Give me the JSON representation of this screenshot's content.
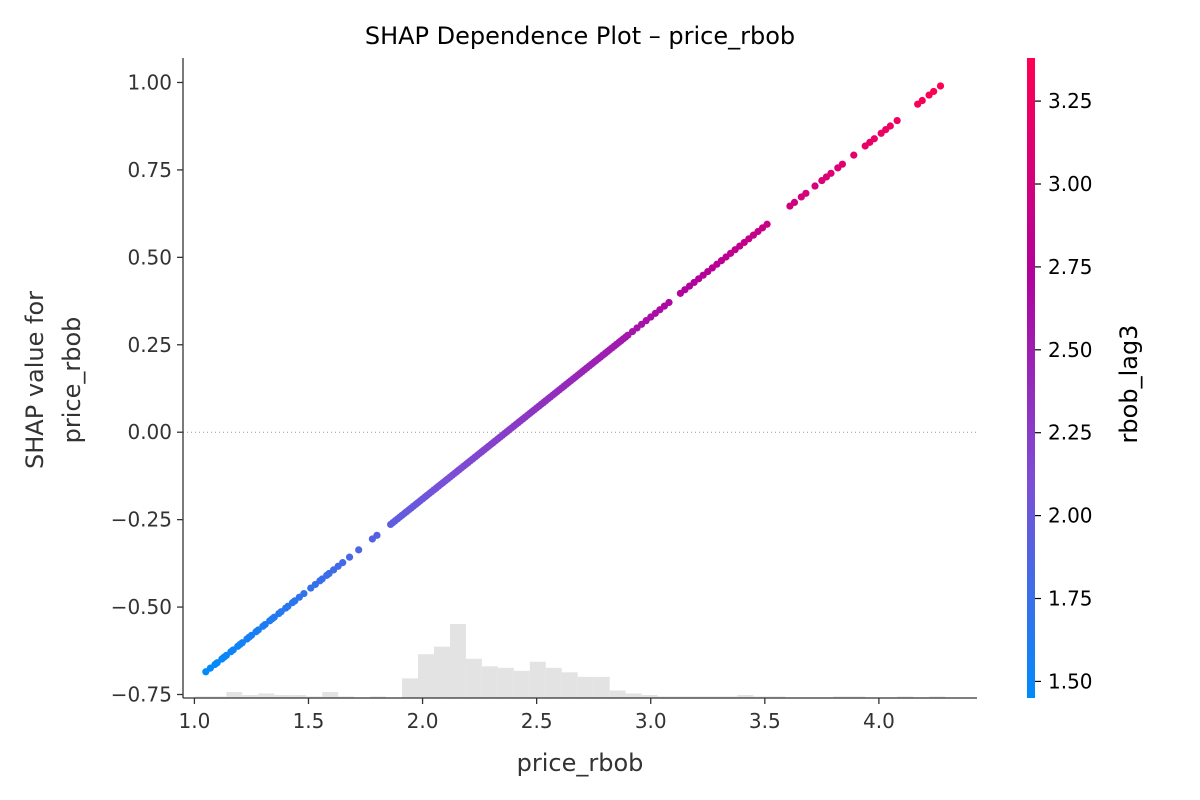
{
  "chart_data": {
    "type": "scatter",
    "title": "SHAP Dependence Plot – price_rbob",
    "xlabel": "price_rbob",
    "ylabel": [
      "SHAP value for",
      "price_rbob"
    ],
    "xlim": [
      0.95,
      4.43
    ],
    "ylim": [
      -0.76,
      1.07
    ],
    "xticks": [
      1.0,
      1.5,
      2.0,
      2.5,
      3.0,
      3.5,
      4.0
    ],
    "xtick_labels": [
      "1.0",
      "1.5",
      "2.0",
      "2.5",
      "3.0",
      "3.5",
      "4.0"
    ],
    "yticks": [
      1.0,
      0.75,
      0.5,
      0.25,
      0.0,
      -0.25,
      -0.5,
      -0.75
    ],
    "ytick_labels": [
      "1.00",
      "0.75",
      "0.50",
      "0.25",
      "0.00",
      "−0.25",
      "−0.50",
      "−0.75"
    ],
    "zero_line": true,
    "grid": false,
    "colorbar": {
      "label": "rbob_lag3",
      "range": [
        1.45,
        3.38
      ],
      "ticks": [
        3.25,
        3.0,
        2.75,
        2.5,
        2.25,
        2.0,
        1.75,
        1.5
      ],
      "tick_labels": [
        "3.25",
        "3.00",
        "2.75",
        "2.50",
        "2.25",
        "2.00",
        "1.75",
        "1.50"
      ],
      "colors": [
        "#008bfb",
        "#7b4fd6",
        "#b2019b",
        "#ff0052"
      ]
    },
    "series": [
      {
        "relation": "linear",
        "x_range": [
          1.05,
          4.27
        ],
        "shap_at_x_min": -0.685,
        "shap_at_x_max": 0.99,
        "color_min": "#008bfb",
        "color_max": "#ff0052",
        "x_points": [
          1.05,
          1.07,
          1.09,
          1.1,
          1.12,
          1.13,
          1.14,
          1.16,
          1.17,
          1.19,
          1.2,
          1.21,
          1.23,
          1.24,
          1.25,
          1.27,
          1.28,
          1.3,
          1.31,
          1.33,
          1.34,
          1.35,
          1.37,
          1.38,
          1.4,
          1.41,
          1.43,
          1.44,
          1.46,
          1.48,
          1.51,
          1.53,
          1.55,
          1.56,
          1.58,
          1.59,
          1.61,
          1.63,
          1.65,
          1.68,
          1.72,
          1.78,
          1.8,
          1.86,
          1.87,
          1.88,
          1.89,
          1.9,
          1.91,
          1.92,
          1.93,
          1.94,
          1.95,
          1.96,
          1.97,
          1.98,
          1.99,
          2.0,
          2.01,
          2.02,
          2.03,
          2.04,
          2.05,
          2.06,
          2.07,
          2.08,
          2.09,
          2.1,
          2.11,
          2.12,
          2.13,
          2.14,
          2.15,
          2.16,
          2.17,
          2.18,
          2.19,
          2.2,
          2.21,
          2.22,
          2.23,
          2.24,
          2.25,
          2.26,
          2.27,
          2.28,
          2.29,
          2.3,
          2.31,
          2.32,
          2.33,
          2.34,
          2.35,
          2.36,
          2.37,
          2.38,
          2.39,
          2.4,
          2.41,
          2.42,
          2.43,
          2.44,
          2.45,
          2.46,
          2.47,
          2.48,
          2.49,
          2.5,
          2.51,
          2.52,
          2.53,
          2.54,
          2.55,
          2.56,
          2.57,
          2.58,
          2.59,
          2.6,
          2.61,
          2.62,
          2.63,
          2.64,
          2.65,
          2.66,
          2.67,
          2.68,
          2.69,
          2.7,
          2.71,
          2.72,
          2.73,
          2.74,
          2.75,
          2.76,
          2.77,
          2.78,
          2.79,
          2.8,
          2.81,
          2.82,
          2.83,
          2.84,
          2.85,
          2.86,
          2.87,
          2.88,
          2.89,
          2.9,
          2.92,
          2.94,
          2.96,
          2.98,
          3.0,
          3.02,
          3.04,
          3.06,
          3.08,
          3.13,
          3.15,
          3.17,
          3.19,
          3.21,
          3.23,
          3.25,
          3.27,
          3.29,
          3.31,
          3.33,
          3.35,
          3.37,
          3.39,
          3.41,
          3.43,
          3.45,
          3.47,
          3.49,
          3.51,
          3.61,
          3.63,
          3.66,
          3.68,
          3.72,
          3.75,
          3.77,
          3.79,
          3.82,
          3.84,
          3.89,
          3.94,
          3.96,
          3.98,
          4.01,
          4.03,
          4.05,
          4.08,
          4.17,
          4.19,
          4.22,
          4.24,
          4.27
        ]
      }
    ],
    "histogram": {
      "color": "#e3e3e3",
      "bin_edges": [
        1.0,
        1.07,
        1.14,
        1.21,
        1.28,
        1.35,
        1.42,
        1.49,
        1.56,
        1.63,
        1.7,
        1.77,
        1.84,
        1.91,
        1.98,
        2.05,
        2.12,
        2.19,
        2.26,
        2.33,
        2.4,
        2.47,
        2.54,
        2.61,
        2.68,
        2.75,
        2.82,
        2.89,
        2.96,
        3.03,
        3.1,
        3.17,
        3.24,
        3.31,
        3.38,
        3.45,
        3.52,
        3.59,
        3.66,
        3.73,
        3.8,
        3.87,
        3.94,
        4.01,
        4.08,
        4.15,
        4.22,
        4.29
      ],
      "counts": [
        1,
        1,
        4,
        2,
        3,
        2,
        2,
        1,
        4,
        1,
        0,
        1,
        0,
        13,
        29,
        34,
        49,
        26,
        21,
        20,
        18,
        24,
        20,
        17,
        14,
        14,
        5,
        3,
        2,
        1,
        1,
        1,
        1,
        1,
        2,
        1,
        1,
        0,
        0,
        0,
        1,
        1,
        0,
        0,
        1,
        0,
        1
      ]
    }
  }
}
